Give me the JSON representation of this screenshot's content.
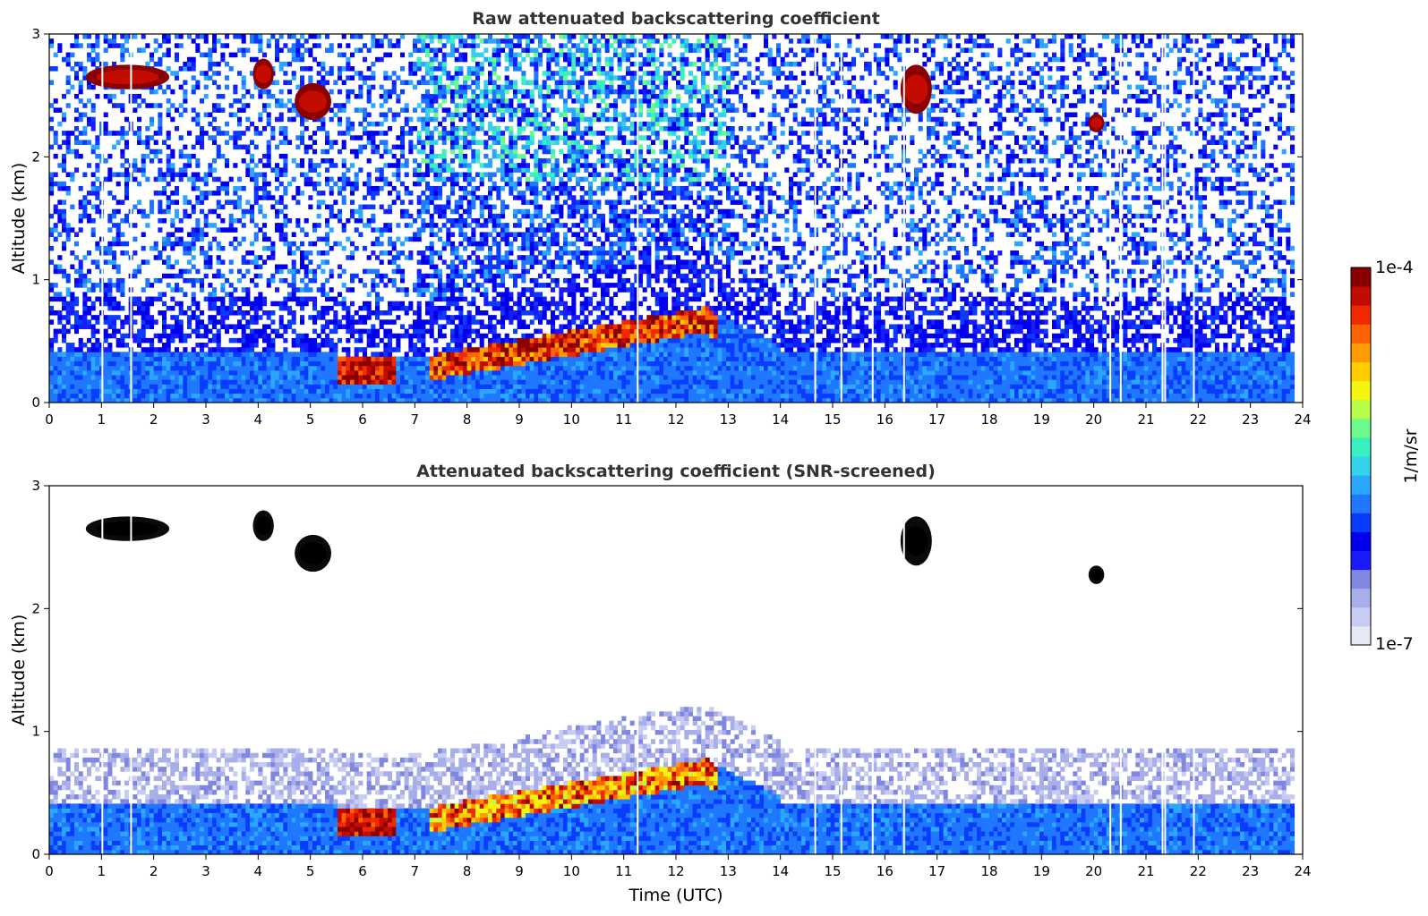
{
  "chart_data": [
    {
      "type": "heatmap",
      "title": "Raw attenuated backscattering coefficient",
      "xlabel": "",
      "ylabel": "Altitude (km)",
      "xlim": [
        0,
        24
      ],
      "ylim": [
        0,
        3
      ],
      "xticks": [
        "0",
        "1",
        "2",
        "3",
        "4",
        "5",
        "6",
        "7",
        "8",
        "9",
        "10",
        "11",
        "12",
        "13",
        "14",
        "15",
        "16",
        "17",
        "18",
        "19",
        "20",
        "21",
        "22",
        "23",
        "24"
      ],
      "yticks": [
        "0",
        "1",
        "2",
        "3"
      ],
      "features": [
        {
          "name": "aerosol boundary layer",
          "t_start": 0,
          "t_end": 23.8,
          "alt_top_km": 0.4
        },
        {
          "name": "elevated aerosol layer",
          "t_start": 7.2,
          "t_end": 12.6,
          "alt_bottom_km": 0.2,
          "alt_top_km": 0.8
        },
        {
          "name": "cloud",
          "t_start": 0.7,
          "t_end": 2.3,
          "alt_bottom_km": 2.55,
          "alt_top_km": 2.75
        },
        {
          "name": "cloud",
          "t_start": 3.9,
          "t_end": 4.3,
          "alt_bottom_km": 2.55,
          "alt_top_km": 2.8
        },
        {
          "name": "cloud",
          "t_start": 4.7,
          "t_end": 5.4,
          "alt_bottom_km": 2.3,
          "alt_top_km": 2.6
        },
        {
          "name": "cloud",
          "t_start": 16.3,
          "t_end": 16.9,
          "alt_bottom_km": 2.35,
          "alt_top_km": 2.75
        },
        {
          "name": "cloud",
          "t_start": 19.9,
          "t_end": 20.2,
          "alt_bottom_km": 2.2,
          "alt_top_km": 2.35
        }
      ]
    },
    {
      "type": "heatmap",
      "title": "Attenuated backscattering coefficient (SNR-screened)",
      "xlabel": "Time (UTC)",
      "ylabel": "Altitude (km)",
      "xlim": [
        0,
        24
      ],
      "ylim": [
        0,
        3
      ],
      "xticks": [
        "0",
        "1",
        "2",
        "3",
        "4",
        "5",
        "6",
        "7",
        "8",
        "9",
        "10",
        "11",
        "12",
        "13",
        "14",
        "15",
        "16",
        "17",
        "18",
        "19",
        "20",
        "21",
        "22",
        "23",
        "24"
      ],
      "yticks": [
        "0",
        "1",
        "2",
        "3"
      ]
    }
  ],
  "colorbar": {
    "label": "1/m/sr",
    "max_label": "1e-4",
    "min_label": "1e-7",
    "colors": [
      "#e6e8f8",
      "#c8ccf2",
      "#a8aee9",
      "#7f87e0",
      "#1a1aff",
      "#0000ee",
      "#0a3cff",
      "#1f78ff",
      "#2aa8ff",
      "#33d3ea",
      "#39f0c0",
      "#6cfa8c",
      "#b6fc48",
      "#f3f511",
      "#ffcc00",
      "#ff9a00",
      "#ff6200",
      "#f02a00",
      "#c40b00",
      "#8a0000"
    ]
  }
}
